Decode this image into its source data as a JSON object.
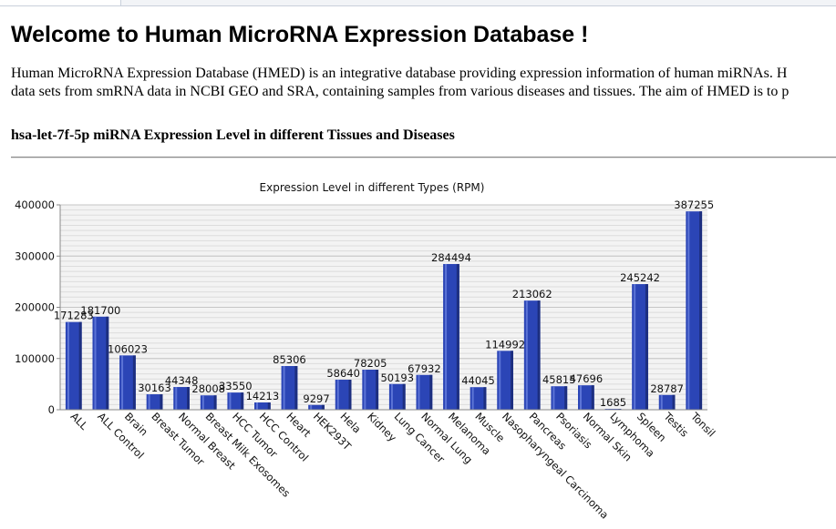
{
  "page": {
    "heading": "Welcome to Human MicroRNA Expression Database !",
    "intro_line1": "Human MicroRNA Expression Database (HMED) is an integrative database providing expression information of human miRNAs. H",
    "intro_line2": "data sets from smRNA data in NCBI GEO and SRA, containing samples from various diseases and tissues. The aim of HMED is to p",
    "subtitle": "hsa-let-7f-5p miRNA Expression Level in different Tissues and Diseases"
  },
  "colors": {
    "bar": "#2b45b6",
    "bar_dark": "#1d2f80",
    "bar_light": "#5c74d6"
  },
  "chart_data": {
    "type": "bar",
    "title": "Expression Level in different Types (RPM)",
    "xlabel": "",
    "ylabel": "",
    "ylim": [
      0,
      400000
    ],
    "yticks": [
      0,
      100000,
      200000,
      300000,
      400000
    ],
    "grid": true,
    "legend": "none",
    "categories": [
      "ALL",
      "ALL Control",
      "Brain",
      "Breast Tumor",
      "Normal Breast",
      "Breast Milk Exosomes",
      "HCC Tumor",
      "HCC Control",
      "Heart",
      "HEK293T",
      "Hela",
      "Kidney",
      "Lung Cancer",
      "Normal Lung",
      "Melanoma",
      "Muscle",
      "Nasopharyngeal Carcinoma",
      "Pancreas",
      "Psoriasis",
      "Normal Skin",
      "Lymphoma",
      "Spleen",
      "Testis",
      "Tonsil"
    ],
    "values": [
      171283,
      181700,
      106023,
      30163,
      44348,
      28008,
      33550,
      14213,
      85306,
      9297,
      58640,
      78205,
      50193,
      67932,
      284494,
      44045,
      114992,
      213062,
      45815,
      47696,
      1685,
      245242,
      28787,
      387255
    ]
  }
}
